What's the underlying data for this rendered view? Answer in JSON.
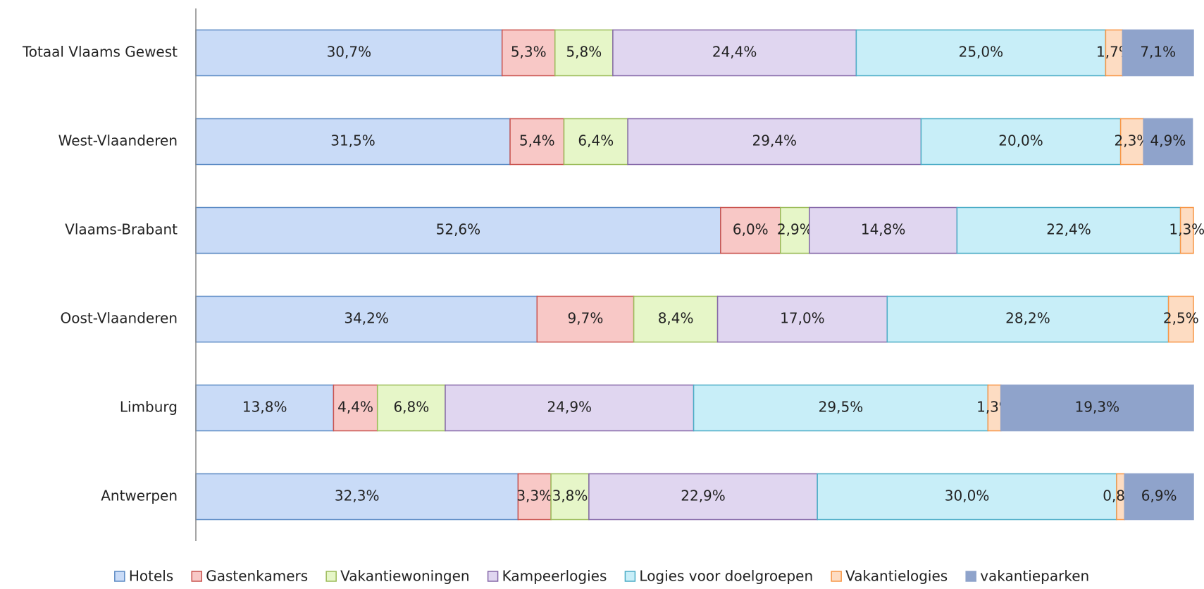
{
  "chart_data": {
    "type": "stacked-barh",
    "categories": [
      "Totaal Vlaams Gewest",
      "West-Vlaanderen",
      "Vlaams-Brabant",
      "Oost-Vlaanderen",
      "Limburg",
      "Antwerpen"
    ],
    "xlim": [
      0,
      100
    ],
    "series": [
      {
        "name": "Hotels",
        "color": "#c9dbf7",
        "stroke": "#5b8ac4",
        "values": [
          30.7,
          31.5,
          52.6,
          34.2,
          13.8,
          32.3
        ],
        "value_labels": [
          "30,7%",
          "31,5%",
          "52,6%",
          "34,2%",
          "13,8%",
          "32,3%"
        ]
      },
      {
        "name": "Gastenkamers",
        "color": "#f8c8c6",
        "stroke": "#c9534f",
        "values": [
          5.3,
          5.4,
          6.0,
          9.7,
          4.4,
          3.3
        ],
        "value_labels": [
          "5,3%",
          "5,4%",
          "6,0%",
          "9,7%",
          "4,4%",
          "3,3%"
        ]
      },
      {
        "name": "Vakantiewoningen",
        "color": "#e6f6c8",
        "stroke": "#9bbb59",
        "values": [
          5.8,
          6.4,
          2.9,
          8.4,
          6.8,
          3.8
        ],
        "value_labels": [
          "5,8%",
          "6,4%",
          "2,9%",
          "8,4%",
          "6,8%",
          "3,8%"
        ]
      },
      {
        "name": "Kampeerlogies",
        "color": "#e0d6f0",
        "stroke": "#8568a8",
        "values": [
          24.4,
          29.4,
          14.8,
          17.0,
          24.9,
          22.9
        ],
        "value_labels": [
          "24,4%",
          "29,4%",
          "14,8%",
          "17,0%",
          "24,9%",
          "22,9%"
        ]
      },
      {
        "name": "Logies voor doelgroepen",
        "color": "#c8eef8",
        "stroke": "#4bacc6",
        "values": [
          25.0,
          20.0,
          22.4,
          28.2,
          29.5,
          30.0
        ],
        "value_labels": [
          "25,0%",
          "20,0%",
          "22,4%",
          "28,2%",
          "29,5%",
          "30,0%"
        ]
      },
      {
        "name": "Vakantielogies",
        "color": "#fddcc2",
        "stroke": "#f79646",
        "values": [
          1.7,
          2.3,
          1.3,
          2.5,
          1.3,
          0.8
        ],
        "value_labels": [
          "1,7%",
          "2,3%",
          "1,3%",
          "2,5%",
          "1,3%",
          "0,8%"
        ]
      },
      {
        "name": "vakantieparken",
        "color": "#8fa3cb",
        "stroke": "#8fa3cb",
        "values": [
          7.1,
          4.9,
          null,
          null,
          19.3,
          6.9
        ],
        "value_labels": [
          "7,1%",
          "4,9%",
          null,
          null,
          "19,3%",
          "6,9%"
        ]
      }
    ]
  }
}
